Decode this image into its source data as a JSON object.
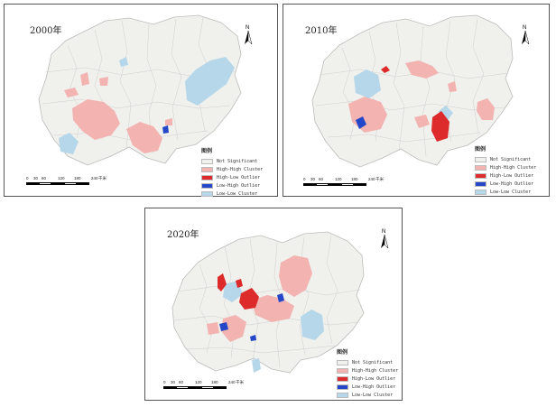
{
  "colors": {
    "not_significant": "#f0f0ec",
    "high_high": "#f2b3b1",
    "high_low": "#dd2a2a",
    "low_high": "#2446c8",
    "low_low": "#b6d7ea",
    "boundary": "#bcbcbc"
  },
  "north_label": "N",
  "legend": {
    "title": "图例",
    "items": [
      {
        "label": "Not Significant",
        "color_key": "not_significant"
      },
      {
        "label": "High-High Cluster",
        "color_key": "high_high"
      },
      {
        "label": "High-Low Outlier",
        "color_key": "high_low"
      },
      {
        "label": "Low-High Outlier",
        "color_key": "low_high"
      },
      {
        "label": "Low-Low Cluster",
        "color_key": "low_low"
      }
    ]
  },
  "scale": {
    "ticks": [
      "0",
      "30",
      "60",
      "120",
      "180",
      "240"
    ],
    "unit": "千米"
  },
  "panels": [
    {
      "year": "2000年"
    },
    {
      "year": "2010年"
    },
    {
      "year": "2020年"
    }
  ]
}
